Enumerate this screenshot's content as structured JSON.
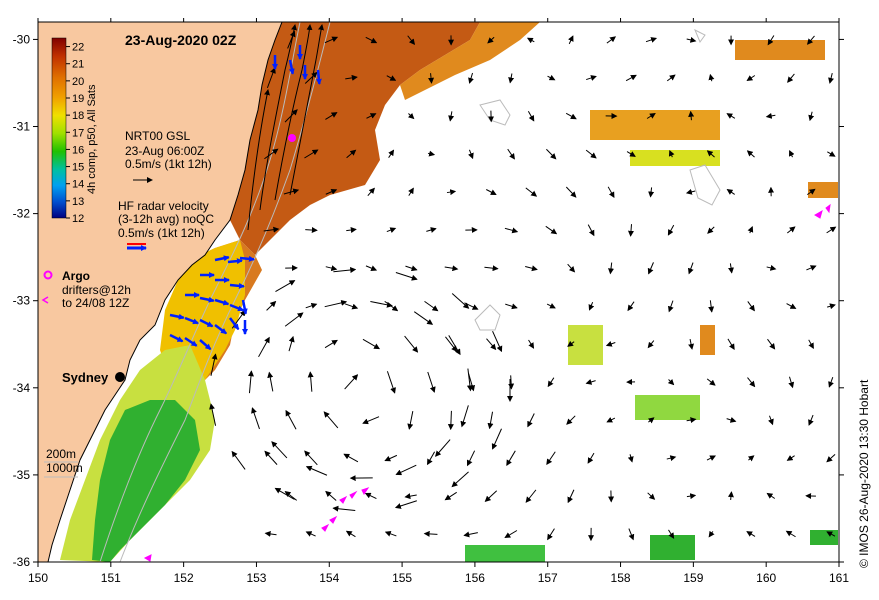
{
  "map": {
    "title": "23-Aug-2020 02Z",
    "x_ticks": [
      "150",
      "151",
      "152",
      "153",
      "154",
      "155",
      "156",
      "157",
      "158",
      "159",
      "160",
      "161"
    ],
    "y_ticks": [
      "-30",
      "-31",
      "-32",
      "-33",
      "-34",
      "-35",
      "-36"
    ],
    "lon_range": [
      150,
      161
    ],
    "lat_range": [
      -36,
      -29.8
    ]
  },
  "colorbar": {
    "label": "4h comp, p50, All Sats",
    "ticks": [
      "22",
      "21",
      "20",
      "19",
      "18",
      "17",
      "16",
      "15",
      "14",
      "13",
      "12"
    ],
    "range": [
      12,
      22.5
    ]
  },
  "legend": {
    "gsl_title": "NRT00 GSL",
    "gsl_time": "23-Aug 06:00Z",
    "gsl_scale": "0.5m/s (1kt 12h)",
    "hf_title": "HF radar velocity",
    "hf_avg": "(3-12h avg) noQC",
    "hf_scale": "0.5m/s (1kt 12h)",
    "argo_label": "Argo",
    "drifters_line1": "drifters@12h",
    "drifters_line2": "to 24/08 12Z",
    "depth_200": "200m",
    "depth_1000": "1000m"
  },
  "places": {
    "sydney": "Sydney"
  },
  "credit": "© IMOS 26-Aug-2020 13:30 Hobart",
  "colors": {
    "land": "#f8c8a0",
    "sea": "#ffffff",
    "arrow": "#000000",
    "hf_arrow": "#0020ff",
    "argo": "#ff00ff",
    "contour": "#bbbbbb"
  }
}
